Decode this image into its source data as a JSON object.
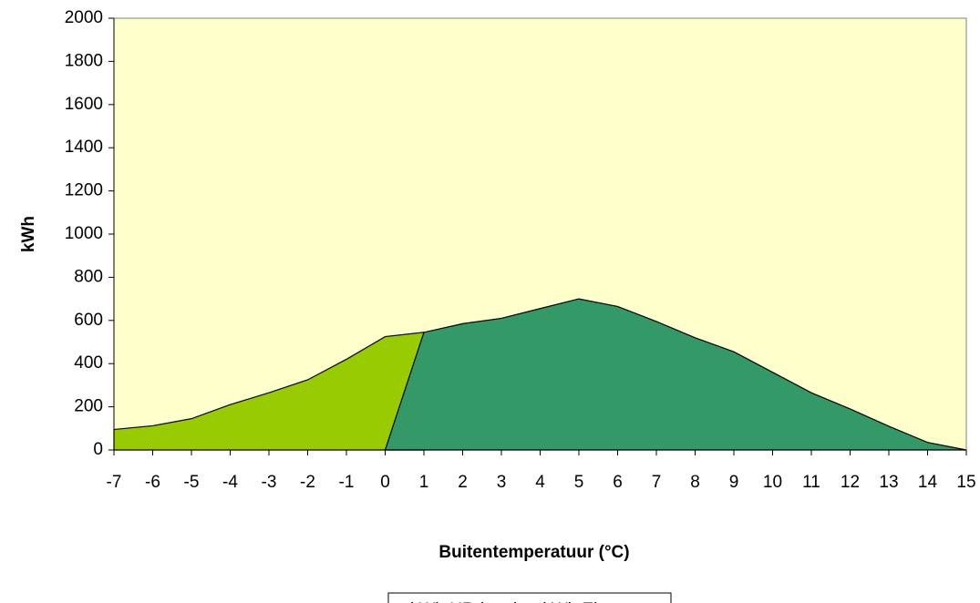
{
  "chart_data": {
    "type": "area",
    "x_label": "Buitentemperatuur (°C)",
    "y_label": "kWh",
    "categories": [
      "-7",
      "-6",
      "-5",
      "-4",
      "-3",
      "-2",
      "-1",
      "0",
      "1",
      "2",
      "3",
      "4",
      "5",
      "6",
      "7",
      "8",
      "9",
      "10",
      "11",
      "12",
      "13",
      "14",
      "15"
    ],
    "series": [
      {
        "name": "kWh HR-ketel",
        "color": "#99cc00",
        "values": [
          95,
          112,
          145,
          210,
          265,
          325,
          420,
          525,
          545,
          null,
          null,
          null,
          null,
          null,
          null,
          null,
          null,
          null,
          null,
          null,
          null,
          null,
          null
        ]
      },
      {
        "name": "kWh Elga",
        "color": "#339966",
        "values": [
          null,
          null,
          null,
          null,
          null,
          null,
          null,
          0,
          545,
          585,
          610,
          655,
          700,
          665,
          595,
          520,
          455,
          360,
          265,
          190,
          110,
          35,
          0
        ]
      }
    ],
    "ylim": [
      0,
      2000
    ],
    "yticks": [
      0,
      200,
      400,
      600,
      800,
      1000,
      1200,
      1400,
      1600,
      1800,
      2000
    ],
    "background": "#ffffcc",
    "legend": "bottom"
  }
}
